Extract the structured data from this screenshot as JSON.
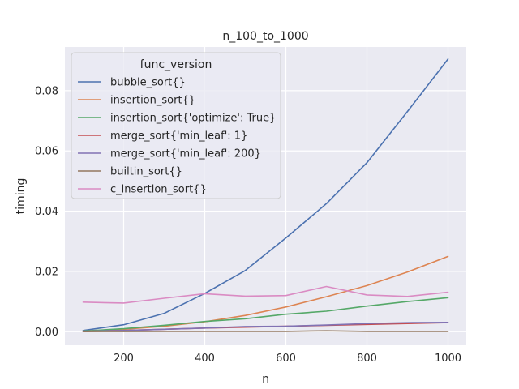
{
  "chart_data": {
    "type": "line",
    "title": "n_100_to_1000",
    "xlabel": "n",
    "ylabel": "timing",
    "x": [
      100,
      200,
      300,
      400,
      500,
      600,
      700,
      800,
      900,
      1000
    ],
    "xlim": [
      55,
      1045
    ],
    "ylim": [
      -0.0045,
      0.0945
    ],
    "xticks": [
      200,
      400,
      600,
      800,
      1000
    ],
    "yticks": [
      0.0,
      0.02,
      0.04,
      0.06,
      0.08
    ],
    "ytick_labels": [
      "0.00",
      "0.02",
      "0.04",
      "0.06",
      "0.08"
    ],
    "grid": true,
    "background": "#eaeaf2",
    "legend": {
      "title": "func_version",
      "placement": "top-left"
    },
    "series": [
      {
        "name": "bubble_sort{}",
        "color": "#4c72b0",
        "values": [
          0.0004,
          0.0023,
          0.0061,
          0.0127,
          0.0203,
          0.0311,
          0.0425,
          0.0561,
          0.0731,
          0.0905
        ]
      },
      {
        "name": "insertion_sort{}",
        "color": "#dd8452",
        "values": [
          0.0002,
          0.0008,
          0.0018,
          0.0033,
          0.0054,
          0.0082,
          0.0116,
          0.0153,
          0.0198,
          0.025
        ]
      },
      {
        "name": "insertion_sort{'optimize': True}",
        "color": "#55a868",
        "values": [
          0.0002,
          0.001,
          0.0021,
          0.0034,
          0.0043,
          0.0058,
          0.0068,
          0.0085,
          0.01,
          0.0113
        ]
      },
      {
        "name": "merge_sort{'min_leaf': 1}",
        "color": "#c44e52",
        "values": [
          0.0001,
          0.0004,
          0.0008,
          0.0012,
          0.0015,
          0.0018,
          0.0021,
          0.0024,
          0.0027,
          0.003
        ]
      },
      {
        "name": "merge_sort{'min_leaf': 200}",
        "color": "#8172b3",
        "values": [
          0.0001,
          0.0004,
          0.0008,
          0.0012,
          0.0017,
          0.0018,
          0.0022,
          0.0027,
          0.003,
          0.0031
        ]
      },
      {
        "name": "builtin_sort{}",
        "color": "#937860",
        "values": [
          3e-05,
          5e-05,
          8e-05,
          0.0001,
          0.0001,
          0.0001,
          0.0003,
          0.0001,
          0.0001,
          0.0001
        ]
      },
      {
        "name": "c_insertion_sort{}",
        "color": "#da8bc3",
        "values": [
          0.0098,
          0.0095,
          0.0111,
          0.0126,
          0.0118,
          0.012,
          0.015,
          0.0122,
          0.0117,
          0.0131
        ]
      }
    ]
  }
}
